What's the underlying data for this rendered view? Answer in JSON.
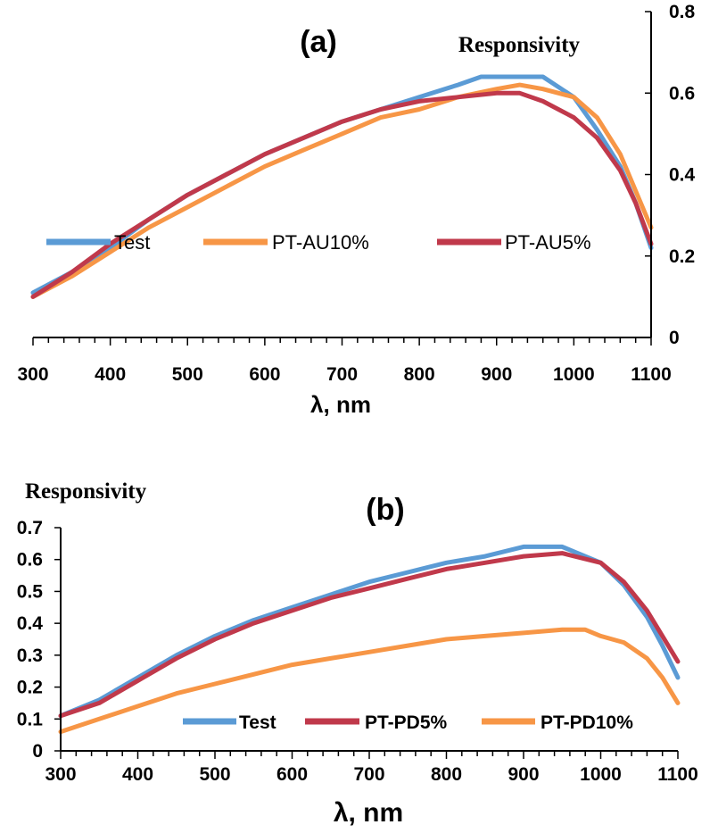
{
  "chart_data": [
    {
      "type": "line",
      "panel": "(a)",
      "title": "",
      "xlabel": "λ, nm",
      "ylabel": "Responsivity",
      "xlim": [
        300,
        1100
      ],
      "ylim": [
        0,
        0.8
      ],
      "xticks": [
        300,
        400,
        500,
        600,
        700,
        800,
        900,
        1000,
        1100
      ],
      "xtick_labels": [
        "300",
        "400",
        "500",
        "600",
        "700",
        "800",
        "900",
        "1000",
        "1100"
      ],
      "yticks": [
        0,
        0.2,
        0.4,
        0.6,
        0.8
      ],
      "ytick_labels": [
        "0",
        "0.2",
        "0.4",
        "0.6",
        "0.8"
      ],
      "y_axis_side": "right",
      "legend_position": "bottom-center",
      "series": [
        {
          "name": "Test",
          "color": "#5b9bd5",
          "x": [
            300,
            350,
            400,
            450,
            500,
            550,
            600,
            650,
            700,
            750,
            800,
            850,
            880,
            920,
            960,
            1000,
            1030,
            1060,
            1080,
            1100
          ],
          "values": [
            0.11,
            0.16,
            0.22,
            0.29,
            0.35,
            0.4,
            0.45,
            0.49,
            0.53,
            0.56,
            0.59,
            0.62,
            0.64,
            0.64,
            0.64,
            0.59,
            0.51,
            0.42,
            0.33,
            0.22
          ]
        },
        {
          "name": "PT-AU10%",
          "color": "#f79646",
          "x": [
            300,
            350,
            400,
            450,
            500,
            550,
            600,
            650,
            700,
            750,
            800,
            850,
            900,
            930,
            960,
            1000,
            1030,
            1060,
            1080,
            1100
          ],
          "values": [
            0.1,
            0.15,
            0.21,
            0.27,
            0.32,
            0.37,
            0.42,
            0.46,
            0.5,
            0.54,
            0.56,
            0.59,
            0.61,
            0.62,
            0.61,
            0.59,
            0.54,
            0.45,
            0.36,
            0.27
          ]
        },
        {
          "name": "PT-AU5%",
          "color": "#c0394b",
          "x": [
            300,
            350,
            400,
            450,
            500,
            550,
            600,
            650,
            700,
            750,
            800,
            850,
            900,
            930,
            960,
            1000,
            1030,
            1060,
            1080,
            1100
          ],
          "values": [
            0.1,
            0.16,
            0.23,
            0.29,
            0.35,
            0.4,
            0.45,
            0.49,
            0.53,
            0.56,
            0.58,
            0.59,
            0.6,
            0.6,
            0.58,
            0.54,
            0.49,
            0.41,
            0.33,
            0.23
          ]
        }
      ]
    },
    {
      "type": "line",
      "panel": "(b)",
      "title": "",
      "xlabel": "λ, nm",
      "ylabel": "Responsivity",
      "xlim": [
        300,
        1100
      ],
      "ylim": [
        0,
        0.7
      ],
      "xticks": [
        300,
        400,
        500,
        600,
        700,
        800,
        900,
        1000,
        1100
      ],
      "xtick_labels": [
        "300",
        "400",
        "500",
        "600",
        "700",
        "800",
        "900",
        "1000",
        "1100"
      ],
      "yticks": [
        0,
        0.1,
        0.2,
        0.3,
        0.4,
        0.5,
        0.6,
        0.7
      ],
      "ytick_labels": [
        "0",
        "0.1",
        "0.2",
        "0.3",
        "0.4",
        "0.5",
        "0.6",
        "0.7"
      ],
      "y_axis_side": "left",
      "legend_position": "bottom-center",
      "series": [
        {
          "name": "Test",
          "color": "#5b9bd5",
          "x": [
            300,
            350,
            400,
            450,
            500,
            550,
            600,
            650,
            700,
            750,
            800,
            850,
            900,
            950,
            1000,
            1030,
            1060,
            1080,
            1100
          ],
          "values": [
            0.11,
            0.16,
            0.23,
            0.3,
            0.36,
            0.41,
            0.45,
            0.49,
            0.53,
            0.56,
            0.59,
            0.61,
            0.64,
            0.64,
            0.59,
            0.52,
            0.42,
            0.33,
            0.23
          ]
        },
        {
          "name": "PT-PD5%",
          "color": "#c0394b",
          "x": [
            300,
            350,
            400,
            450,
            500,
            550,
            600,
            650,
            700,
            750,
            800,
            850,
            900,
            950,
            1000,
            1030,
            1060,
            1080,
            1100
          ],
          "values": [
            0.11,
            0.15,
            0.22,
            0.29,
            0.35,
            0.4,
            0.44,
            0.48,
            0.51,
            0.54,
            0.57,
            0.59,
            0.61,
            0.62,
            0.59,
            0.53,
            0.44,
            0.36,
            0.28
          ]
        },
        {
          "name": "PT-PD10%",
          "color": "#f79646",
          "x": [
            300,
            350,
            400,
            450,
            500,
            550,
            600,
            650,
            700,
            750,
            800,
            850,
            900,
            950,
            980,
            1000,
            1030,
            1060,
            1080,
            1100
          ],
          "values": [
            0.06,
            0.1,
            0.14,
            0.18,
            0.21,
            0.24,
            0.27,
            0.29,
            0.31,
            0.33,
            0.35,
            0.36,
            0.37,
            0.38,
            0.38,
            0.36,
            0.34,
            0.29,
            0.23,
            0.15
          ]
        }
      ]
    }
  ]
}
